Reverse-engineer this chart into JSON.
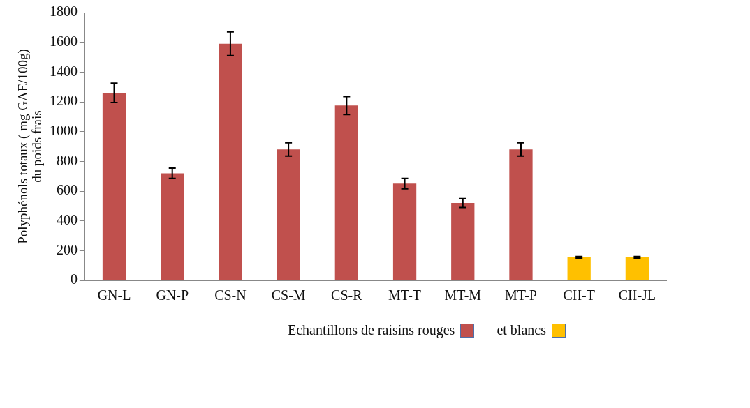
{
  "chart_data": {
    "type": "bar",
    "ylabel": "Polyphénols totaux ( mg GAE/100g)\ndu poids frais",
    "categories": [
      "GN-L",
      "GN-P",
      "CS-N",
      "CS-M",
      "CS-R",
      "MT-T",
      "MT-M",
      "MT-P",
      "CII-T",
      "CII-JL"
    ],
    "series": [
      {
        "name": "Echantillons de raisins rouges",
        "color": "#c0504d",
        "values": [
          1260,
          720,
          1590,
          880,
          1175,
          650,
          520,
          880,
          null,
          null
        ],
        "errors": [
          65,
          35,
          80,
          45,
          60,
          35,
          30,
          45,
          null,
          null
        ]
      },
      {
        "name": "et blancs",
        "color": "#ffc000",
        "values": [
          null,
          null,
          null,
          null,
          null,
          null,
          null,
          null,
          155,
          155
        ],
        "errors": [
          null,
          null,
          null,
          null,
          null,
          null,
          null,
          null,
          5,
          5
        ]
      }
    ],
    "ylim": [
      0,
      1800
    ],
    "yticks": [
      0,
      200,
      400,
      600,
      800,
      1000,
      1200,
      1400,
      1600,
      1800
    ],
    "grid": false,
    "legend": "bottom"
  }
}
